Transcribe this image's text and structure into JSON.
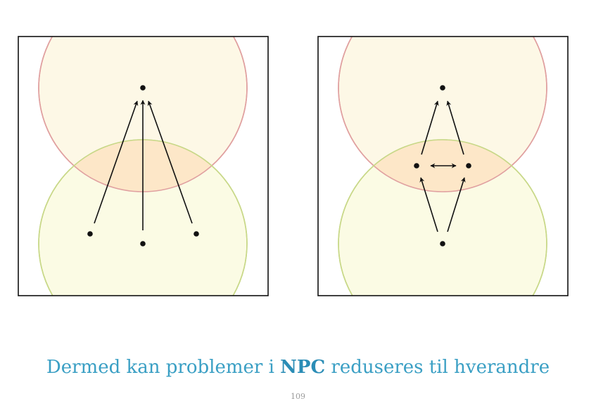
{
  "caption": {
    "before": "Dermed kan problemer i ",
    "emphasis": "NPC",
    "after": " reduseres til hverandre"
  },
  "page_number": "109",
  "colors": {
    "upper_circle_stroke": "#e0a0a0",
    "upper_circle_fill": "#fdf8e6",
    "lower_circle_stroke": "#c8d888",
    "lower_circle_fill": "#fbfbe4",
    "overlap_fill": "#fde7c8",
    "caption": "#3a9fc4"
  }
}
